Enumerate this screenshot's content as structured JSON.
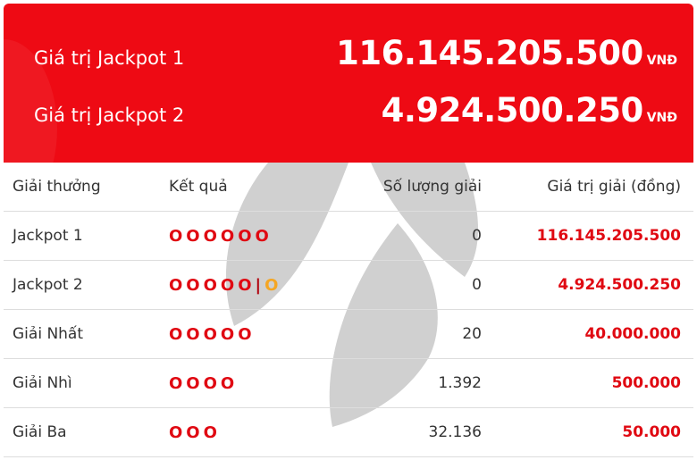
{
  "jackpots": [
    {
      "label": "Giá trị Jackpot 1",
      "value": "116.145.205.500",
      "currency": "VNĐ"
    },
    {
      "label": "Giá trị Jackpot 2",
      "value": "4.924.500.250",
      "currency": "VNĐ"
    }
  ],
  "table": {
    "headers": [
      "Giải thưởng",
      "Kết quả",
      "Số lượng giải",
      "Giá trị giải (đồng)"
    ],
    "rows": [
      {
        "name": "Jackpot 1",
        "result": "OOOOOO",
        "extra": "",
        "count": "0",
        "value": "116.145.205.500"
      },
      {
        "name": "Jackpot 2",
        "result": "OOOOO",
        "extra": "O",
        "count": "0",
        "value": "4.924.500.250"
      },
      {
        "name": "Giải Nhất",
        "result": "OOOOO",
        "extra": "",
        "count": "20",
        "value": "40.000.000"
      },
      {
        "name": "Giải Nhì",
        "result": "OOOO",
        "extra": "",
        "count": "1.392",
        "value": "500.000"
      },
      {
        "name": "Giải Ba",
        "result": "OOO",
        "extra": "",
        "count": "32.136",
        "value": "50.000"
      }
    ]
  },
  "colors": {
    "banner": "#ee0a14",
    "prize": "#e00912",
    "extra_ball": "#f5a623"
  }
}
